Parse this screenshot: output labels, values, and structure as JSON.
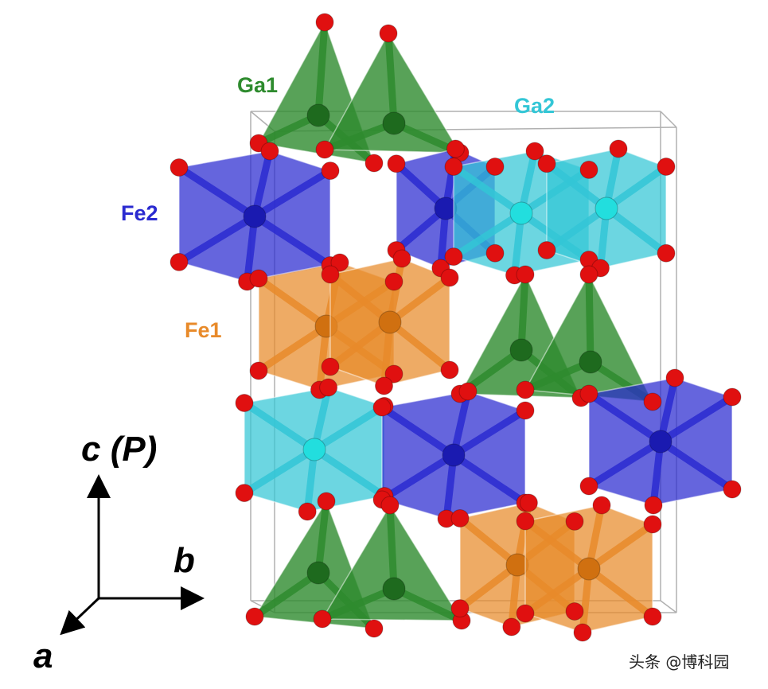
{
  "labels": {
    "ga1": "Ga1",
    "ga2": "Ga2",
    "fe2": "Fe2",
    "fe1": "Fe1"
  },
  "axes": {
    "c": "c",
    "c_paren": "(P)",
    "b": "b",
    "a": "a"
  },
  "watermark": "头条 @博科园",
  "colors": {
    "ga1": "#2e8b2e",
    "ga2": "#33c6d6",
    "fe2": "#2a2ad0",
    "fe1": "#e88a2a",
    "oxygen": "#e01010",
    "cell": "#b0b0b0"
  }
}
